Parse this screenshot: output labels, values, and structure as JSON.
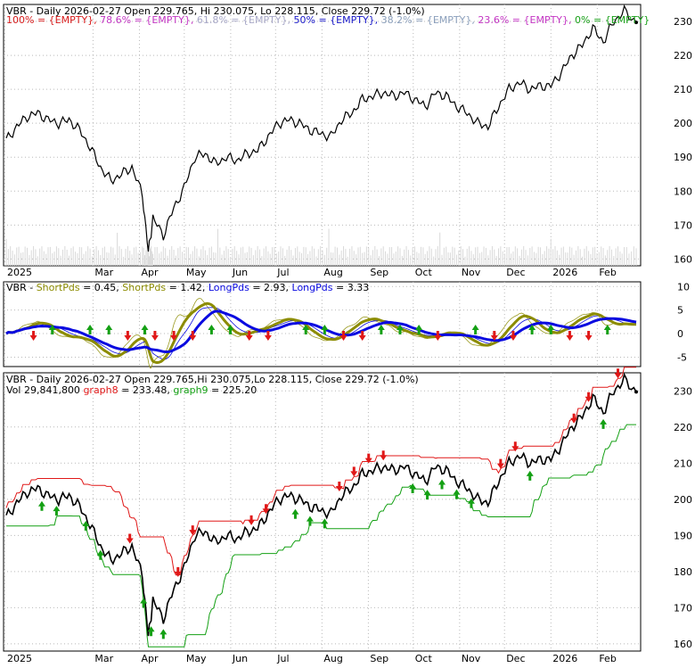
{
  "colors": {
    "frame": "#000000",
    "grid": "#b9b9b9",
    "price": "#000000",
    "up_arrow": "#14a014",
    "down_arrow": "#e01818",
    "short_line": "#9a9a20",
    "short_pds": "#8c8c00",
    "long_pds": "#0a0ae0",
    "graph8": "#e01818",
    "graph9": "#14a014",
    "volume": "#d9d9d9"
  },
  "panel1": {
    "title": "VBR - Daily 2026-02-27 Open 229.765, Hi 230.075, Lo 228.115, Close 229.72 (-1.0%)",
    "fib_legend": [
      {
        "text": "100% = {EMPTY},",
        "color": "#d81b1b"
      },
      {
        "text": "78.6% = {EMPTY},",
        "color": "#c436c4"
      },
      {
        "text": "61.8% = {EMPTY},",
        "color": "#a8a8c8"
      },
      {
        "text": "50% = {EMPTY},",
        "color": "#1616c8"
      },
      {
        "text": "38.2% = {EMPTY},",
        "color": "#8ca0bc"
      },
      {
        "text": "23.6% = {EMPTY},",
        "color": "#c436c4"
      },
      {
        "text": "0% = {EMPTY}",
        "color": "#18a018"
      }
    ],
    "y_ticks": [
      "160",
      "170",
      "180",
      "190",
      "200",
      "210",
      "220",
      "230"
    ],
    "x_ticks": [
      "2025",
      "Mar",
      "Apr",
      "May",
      "Jun",
      "Jul",
      "Aug",
      "Sep",
      "Oct",
      "Nov",
      "Dec",
      "2026",
      "Feb"
    ]
  },
  "panel2": {
    "legend": [
      {
        "text": "VBR - ",
        "color": "#000000"
      },
      {
        "text": "ShortPds",
        "color": "#8c8c00"
      },
      {
        "text": " = 0.45, ",
        "color": "#000000"
      },
      {
        "text": "ShortPds",
        "color": "#8c8c00"
      },
      {
        "text": " = 1.42, ",
        "color": "#000000"
      },
      {
        "text": "LongPds",
        "color": "#0a0ae0"
      },
      {
        "text": " = 2.93, ",
        "color": "#000000"
      },
      {
        "text": "LongPds",
        "color": "#0a0ae0"
      },
      {
        "text": " = 3.33",
        "color": "#000000"
      }
    ],
    "y_ticks": [
      "-5",
      "0",
      "5",
      "10"
    ]
  },
  "panel3": {
    "title": "VBR - Daily 2026-02-27 Open 229.765,Hi 230.075,Lo 228.115, Close 229.72 (-1.0%)",
    "legend": [
      {
        "text": "Vol 29,841,800 ",
        "color": "#000000"
      },
      {
        "text": "graph8",
        "color": "#e01818"
      },
      {
        "text": " = 233.48, ",
        "color": "#000000"
      },
      {
        "text": "graph9",
        "color": "#14a014"
      },
      {
        "text": " = 225.20",
        "color": "#000000"
      }
    ],
    "y_ticks": [
      "160",
      "170",
      "180",
      "190",
      "200",
      "210",
      "220",
      "230"
    ],
    "x_ticks": [
      "2025",
      "Mar",
      "Apr",
      "May",
      "Jun",
      "Jul",
      "Aug",
      "Sep",
      "Oct",
      "Nov",
      "Dec",
      "2026",
      "Feb"
    ]
  },
  "chart_data": {
    "type": "line",
    "price": {
      "x": [
        "2025-01-02",
        "2025-01-09",
        "2025-01-16",
        "2025-01-23",
        "2025-01-30",
        "2025-02-06",
        "2025-02-13",
        "2025-02-20",
        "2025-02-27",
        "2025-03-06",
        "2025-03-13",
        "2025-03-20",
        "2025-03-27",
        "2025-04-03",
        "2025-04-07",
        "2025-04-10",
        "2025-04-17",
        "2025-04-24",
        "2025-05-01",
        "2025-05-08",
        "2025-05-15",
        "2025-05-22",
        "2025-05-29",
        "2025-06-05",
        "2025-06-12",
        "2025-06-19",
        "2025-06-26",
        "2025-07-03",
        "2025-07-10",
        "2025-07-17",
        "2025-07-24",
        "2025-07-31",
        "2025-08-07",
        "2025-08-14",
        "2025-08-21",
        "2025-08-28",
        "2025-09-04",
        "2025-09-11",
        "2025-09-18",
        "2025-09-25",
        "2025-10-02",
        "2025-10-09",
        "2025-10-16",
        "2025-10-23",
        "2025-10-30",
        "2025-11-06",
        "2025-11-13",
        "2025-11-20",
        "2025-11-27",
        "2025-12-04",
        "2025-12-11",
        "2025-12-18",
        "2025-12-25",
        "2026-01-01",
        "2026-01-08",
        "2026-01-15",
        "2026-01-22",
        "2026-01-29",
        "2026-02-05",
        "2026-02-12",
        "2026-02-19",
        "2026-02-27"
      ],
      "close": [
        195,
        199,
        202,
        203,
        201,
        200,
        201,
        198,
        193,
        187,
        183,
        185,
        187,
        179,
        162,
        172,
        167,
        175,
        181,
        190,
        191,
        188,
        190,
        189,
        191,
        192,
        196,
        200,
        201,
        200,
        198,
        197,
        196,
        201,
        203,
        207,
        208,
        209,
        208,
        209,
        207,
        205,
        209,
        208,
        205,
        203,
        200,
        199,
        205,
        210,
        212,
        210,
        211,
        211,
        215,
        220,
        223,
        228,
        224,
        230,
        233,
        229.72
      ]
    },
    "y_range_price": [
      158,
      235
    ],
    "oscillator": {
      "y_range": [
        -7,
        11
      ],
      "series": [
        {
          "name": "ShortPds",
          "value": 0.45
        },
        {
          "name": "ShortPds",
          "value": 1.42
        },
        {
          "name": "LongPds",
          "value": 2.93
        },
        {
          "name": "LongPds",
          "value": 3.33
        }
      ]
    },
    "bands": {
      "graph8_last": 233.48,
      "graph9_last": 225.2
    },
    "last_bar": {
      "date": "2026-02-27",
      "open": 229.765,
      "high": 230.075,
      "low": 228.115,
      "close": 229.72,
      "change_pct": -1.0,
      "volume": 29841800
    }
  }
}
